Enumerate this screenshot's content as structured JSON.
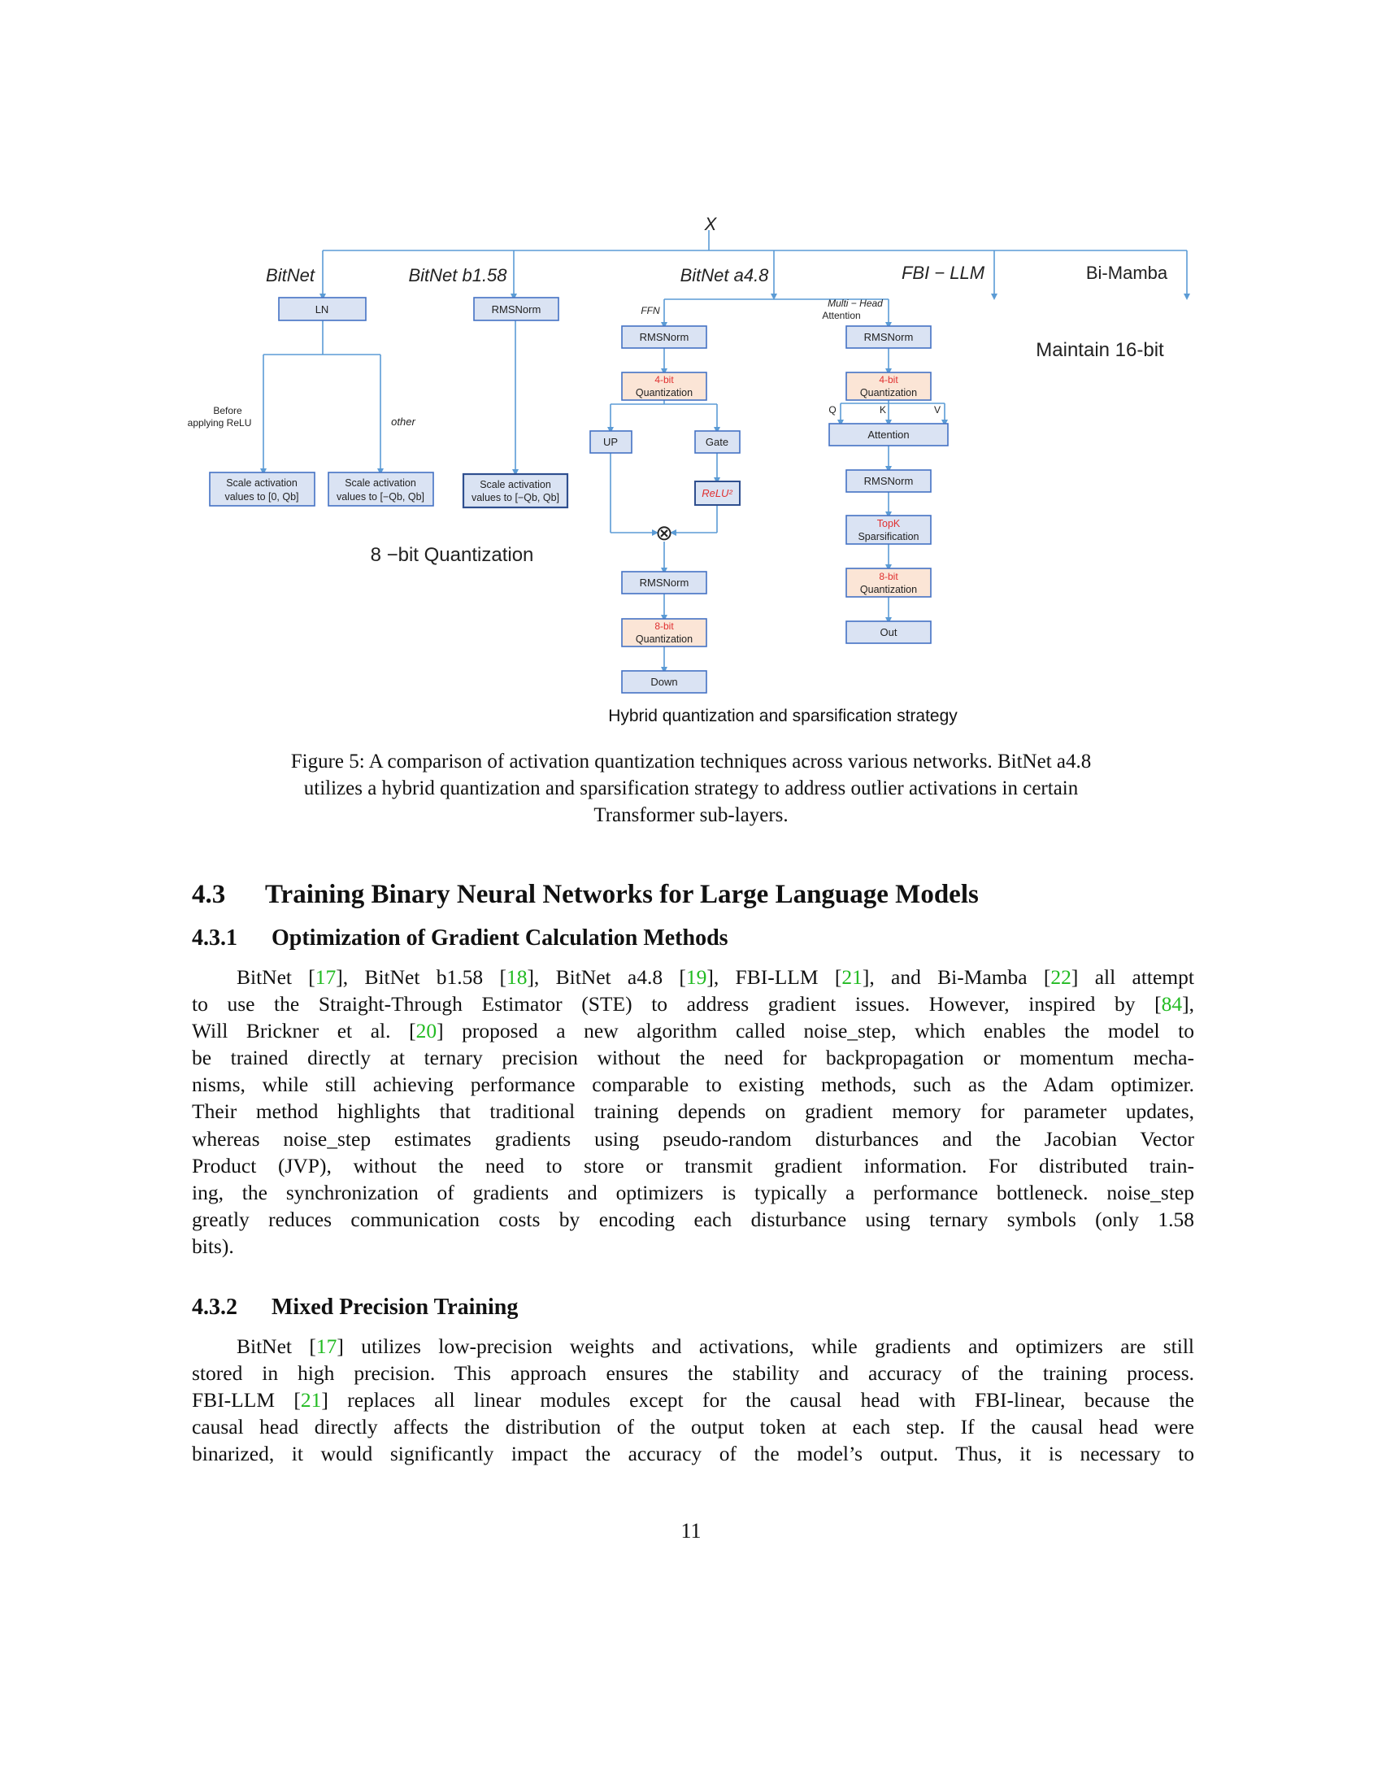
{
  "figure": {
    "input_label": "X",
    "branches": {
      "bitnet": "BitNet",
      "bitnet_b158": "BitNet b1.58",
      "bitnet_a48": "BitNet a4.8",
      "fbi_llm": "FBI − LLM",
      "bi_mamba": "Bi-Mamba"
    },
    "bitnet": {
      "ln": "LN",
      "cond_left": "Before",
      "cond_left2": "applying ReLU",
      "cond_right": "other",
      "scale_left_1": "Scale activation",
      "scale_left_2": "values to [0, Qb]",
      "scale_right_1": "Scale activation",
      "scale_right_2": "values to [−Qb, Qb]"
    },
    "b158": {
      "rmsnorm": "RMSNorm",
      "scale_1": "Scale activation",
      "scale_2": "values to [−Qb, Qb]"
    },
    "eight_bit_label": "8 −bit Quantization",
    "maintain_label": "Maintain 16-bit",
    "ffn": {
      "label": "FFN",
      "rmsnorm1": "RMSNorm",
      "quant4_a": "4-bit",
      "quant4_b": "Quantization",
      "up": "UP",
      "gate": "Gate",
      "relu": "ReLU²",
      "mult": "⊗",
      "rmsnorm2": "RMSNorm",
      "quant8_a": "8-bit",
      "quant8_b": "Quantization",
      "down": "Down"
    },
    "attn": {
      "label": "Multi − Head",
      "label2": "Attention",
      "rmsnorm1": "RMSNorm",
      "quant4_a": "4-bit",
      "quant4_b": "Quantization",
      "q": "Q",
      "k": "K",
      "v": "V",
      "attention": "Attention",
      "rmsnorm2": "RMSNorm",
      "topk_a": "TopK",
      "topk_b": "Sparsification",
      "quant8_a": "8-bit",
      "quant8_b": "Quantization",
      "out": "Out"
    },
    "hybrid_label": "Hybrid quantization and sparsification strategy"
  },
  "caption": {
    "line1": "Figure 5: A comparison of activation quantization techniques across various networks. BitNet a4.8",
    "line2": "utilizes a hybrid quantization and sparsification strategy to address outlier activations in certain",
    "line3": "Transformer sub-layers."
  },
  "section": {
    "number": "4.3",
    "title": "Training Binary Neural Networks for Large Language Models"
  },
  "sub1": {
    "number": "4.3.1",
    "title": "Optimization of Gradient Calculation Methods"
  },
  "para1": [
    [
      "BitNet [",
      "17",
      "], BitNet b1.58 [",
      "18",
      "], BitNet a4.8 [",
      "19",
      "], FBI-LLM [",
      "21",
      "], and Bi-Mamba [",
      "22",
      "] all attempt"
    ],
    [
      "to use the Straight-Through Estimator (STE) to address gradient issues. However, inspired by [",
      "84",
      "],"
    ],
    [
      "Will Brickner et al. [",
      "20",
      "] proposed a new algorithm called noise_step, which enables the model to"
    ],
    [
      "be trained directly at ternary precision without the need for backpropagation or momentum mecha-"
    ],
    [
      "nisms, while still achieving performance comparable to existing methods, such as the Adam optimizer."
    ],
    [
      "Their method highlights that traditional training depends on gradient memory for parameter updates,"
    ],
    [
      "whereas noise_step estimates gradients using pseudo-random disturbances and the Jacobian Vector"
    ],
    [
      "Product (JVP), without the need to store or transmit gradient information. For distributed train-"
    ],
    [
      "ing, the synchronization of gradients and optimizers is typically a performance bottleneck. noise_step"
    ],
    [
      "greatly reduces communication costs by encoding each disturbance using ternary symbols (only 1.58"
    ],
    [
      "bits)."
    ]
  ],
  "sub2": {
    "number": "4.3.2",
    "title": "Mixed Precision Training"
  },
  "para2": [
    [
      "BitNet [",
      "17",
      "] utilizes low-precision weights and activations, while gradients and optimizers are still"
    ],
    [
      "stored in high precision. This approach ensures the stability and accuracy of the training process."
    ],
    [
      "FBI-LLM [",
      "21",
      "] replaces all linear modules except for the causal head with FBI-linear, because the"
    ],
    [
      "causal head directly affects the distribution of the output token at each step. If the causal head were"
    ],
    [
      "binarized, it would significantly impact the accuracy of the model’s output. Thus, it is necessary to"
    ]
  ],
  "page_number": "11"
}
